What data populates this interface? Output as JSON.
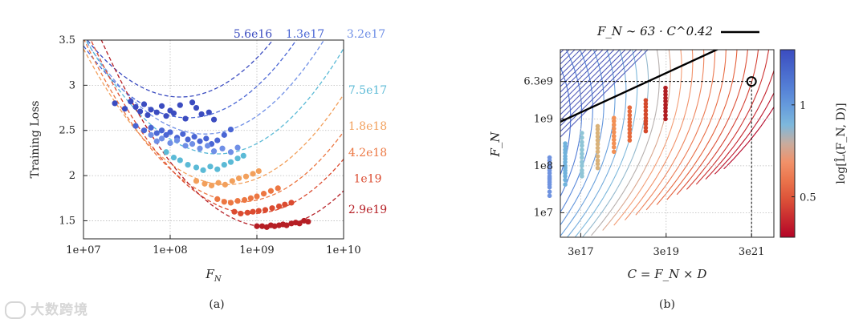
{
  "watermark": "大数跨境",
  "chart_data": [
    {
      "id": "a",
      "caption": "(a)",
      "type": "scatter",
      "xlabel": "F_N",
      "ylabel": "Training Loss",
      "xscale": "log",
      "xlim": [
        10000000.0,
        10000000000.0
      ],
      "ylim": [
        1.3,
        3.5
      ],
      "xticks": [
        "1e+07",
        "1e+08",
        "1e+09",
        "1e+10"
      ],
      "yticks": [
        "1.5",
        "2",
        "2.5",
        "3",
        "3.5"
      ],
      "grid": true,
      "series": [
        {
          "name": "5.6e16",
          "color": "#3b4cc0",
          "label_y": 3.55,
          "x": [
            23000000.0,
            30000000.0,
            35000000.0,
            40000000.0,
            45000000.0,
            50000000.0,
            55000000.0,
            60000000.0,
            70000000.0,
            80000000.0,
            90000000.0,
            100000000.0,
            110000000.0,
            130000000.0,
            150000000.0,
            180000000.0,
            200000000.0,
            230000000.0,
            280000000.0,
            320000000.0
          ],
          "y": [
            2.8,
            2.74,
            2.82,
            2.76,
            2.71,
            2.79,
            2.67,
            2.73,
            2.7,
            2.77,
            2.66,
            2.72,
            2.69,
            2.78,
            2.63,
            2.81,
            2.75,
            2.68,
            2.7,
            2.62
          ]
        },
        {
          "name": "1.3e17",
          "color": "#4a66d4",
          "label_y": 3.55,
          "x": [
            40000000.0,
            50000000.0,
            60000000.0,
            70000000.0,
            80000000.0,
            90000000.0,
            100000000.0,
            120000000.0,
            140000000.0,
            160000000.0,
            190000000.0,
            220000000.0,
            260000000.0,
            300000000.0,
            350000000.0,
            420000000.0,
            500000000.0
          ],
          "y": [
            2.55,
            2.5,
            2.53,
            2.47,
            2.5,
            2.45,
            2.48,
            2.42,
            2.46,
            2.4,
            2.43,
            2.38,
            2.41,
            2.35,
            2.39,
            2.45,
            2.51
          ]
        },
        {
          "name": "3.2e17",
          "color": "#6f8fe6",
          "label_y": 3.55,
          "x": [
            60000000.0,
            70000000.0,
            80000000.0,
            100000000.0,
            120000000.0,
            150000000.0,
            180000000.0,
            220000000.0,
            270000000.0,
            320000000.0,
            400000000.0,
            500000000.0,
            600000000.0
          ],
          "y": [
            2.45,
            2.38,
            2.41,
            2.36,
            2.39,
            2.33,
            2.35,
            2.3,
            2.33,
            2.27,
            2.3,
            2.26,
            2.31
          ]
        },
        {
          "name": "7.5e17",
          "color": "#5bbad6",
          "label_y": 2.95,
          "x": [
            90000000.0,
            110000000.0,
            130000000.0,
            160000000.0,
            200000000.0,
            240000000.0,
            290000000.0,
            350000000.0,
            420000000.0,
            500000000.0,
            600000000.0,
            700000000.0
          ],
          "y": [
            2.26,
            2.2,
            2.17,
            2.12,
            2.09,
            2.06,
            2.1,
            2.07,
            2.12,
            2.15,
            2.19,
            2.22
          ]
        },
        {
          "name": "1.8e18",
          "color": "#f2a05c",
          "label_y": 2.55,
          "x": [
            200000000.0,
            250000000.0,
            300000000.0,
            360000000.0,
            430000000.0,
            520000000.0,
            620000000.0,
            750000000.0,
            900000000.0,
            1050000000.0
          ],
          "y": [
            1.94,
            1.91,
            1.89,
            1.92,
            1.9,
            1.94,
            1.97,
            1.99,
            2.02,
            2.05
          ]
        },
        {
          "name": "4.2e18",
          "color": "#ec7742",
          "label_y": 2.26,
          "x": [
            350000000.0,
            420000000.0,
            500000000.0,
            600000000.0,
            720000000.0,
            850000000.0,
            1000000000.0,
            1200000000.0,
            1450000000.0,
            1750000000.0
          ],
          "y": [
            1.74,
            1.71,
            1.7,
            1.72,
            1.73,
            1.75,
            1.77,
            1.8,
            1.83,
            1.86
          ]
        },
        {
          "name": "1e19",
          "color": "#db4b30",
          "label_y": 1.97,
          "x": [
            550000000.0,
            650000000.0,
            780000000.0,
            900000000.0,
            1050000000.0,
            1250000000.0,
            1500000000.0,
            1800000000.0,
            2100000000.0,
            2500000000.0
          ],
          "y": [
            1.6,
            1.58,
            1.59,
            1.6,
            1.61,
            1.62,
            1.64,
            1.66,
            1.68,
            1.7
          ]
        },
        {
          "name": "2.9e19",
          "color": "#b51e24",
          "label_y": 1.63,
          "x": [
            1000000000.0,
            1150000000.0,
            1300000000.0,
            1450000000.0,
            1600000000.0,
            1800000000.0,
            2000000000.0,
            2200000000.0,
            2500000000.0,
            2800000000.0,
            3100000000.0,
            3500000000.0,
            3900000000.0
          ],
          "y": [
            1.44,
            1.44,
            1.43,
            1.45,
            1.44,
            1.45,
            1.46,
            1.45,
            1.47,
            1.48,
            1.47,
            1.5,
            1.49
          ]
        }
      ],
      "fit_curves": [
        {
          "name": "5.6e16",
          "opt_x": 130000000.0,
          "opt_y": 2.87
        },
        {
          "name": "1.3e17",
          "opt_x": 160000000.0,
          "opt_y": 2.64
        },
        {
          "name": "3.2e17",
          "opt_x": 250000000.0,
          "opt_y": 2.46
        },
        {
          "name": "7.5e17",
          "opt_x": 350000000.0,
          "opt_y": 2.24
        },
        {
          "name": "1.8e18",
          "opt_x": 450000000.0,
          "opt_y": 1.9
        },
        {
          "name": "4.2e18",
          "opt_x": 650000000.0,
          "opt_y": 1.71
        },
        {
          "name": "1e19",
          "opt_x": 900000000.0,
          "opt_y": 1.58
        },
        {
          "name": "2.9e19",
          "opt_x": 1400000000.0,
          "opt_y": 1.43
        }
      ]
    },
    {
      "id": "b",
      "caption": "(b)",
      "type": "scatter",
      "xlabel": "C = F_N × D",
      "ylabel": "F_N",
      "xscale": "log",
      "yscale": "log",
      "xlim": [
        1e+17,
        1e+22
      ],
      "ylim": [
        3000000.0,
        30000000000.0
      ],
      "xticks": [
        "3e17",
        "3e19",
        "3e21"
      ],
      "yticks": [
        "1e7",
        "1e8",
        "1e9",
        "6.3e9"
      ],
      "grid": true,
      "legend": {
        "label": "F_N ∼ 63 · C^0.42",
        "position": "top"
      },
      "fit_line": {
        "coef": 63,
        "exponent": 0.42
      },
      "marker": {
        "C": 3e+21,
        "F_N": 6300000000.0
      },
      "colorbar": {
        "label": "log[L̂(F_N, D)]",
        "ticks": [
          "1",
          "0.5"
        ],
        "tick_values": [
          1.0,
          0.5
        ],
        "range": [
          0.28,
          1.3
        ]
      },
      "series": [
        {
          "C": 5.6e+16,
          "color": "#6f93e0",
          "F_N": [
            23000000.0,
            28000000.0,
            35000000.0,
            40000000.0,
            45000000.0,
            50000000.0,
            55000000.0,
            60000000.0,
            70000000.0,
            80000000.0,
            90000000.0,
            100000000.0,
            110000000.0,
            130000000.0,
            150000000.0
          ]
        },
        {
          "C": 1.3e+17,
          "color": "#6fb2dc",
          "F_N": [
            40000000.0,
            50000000.0,
            60000000.0,
            70000000.0,
            80000000.0,
            90000000.0,
            100000000.0,
            120000000.0,
            140000000.0,
            160000000.0,
            190000000.0,
            220000000.0,
            260000000.0,
            300000000.0
          ]
        },
        {
          "C": 3.2e+17,
          "color": "#8fc5d6",
          "F_N": [
            60000000.0,
            70000000.0,
            80000000.0,
            100000000.0,
            120000000.0,
            150000000.0,
            180000000.0,
            220000000.0,
            270000000.0,
            320000000.0,
            400000000.0,
            500000000.0
          ]
        },
        {
          "C": 7.5e+17,
          "color": "#d9b27a",
          "F_N": [
            90000000.0,
            110000000.0,
            130000000.0,
            160000000.0,
            200000000.0,
            240000000.0,
            290000000.0,
            350000000.0,
            420000000.0,
            500000000.0,
            600000000.0,
            700000000.0
          ]
        },
        {
          "C": 1.8e+18,
          "color": "#f29055",
          "F_N": [
            200000000.0,
            250000000.0,
            300000000.0,
            360000000.0,
            430000000.0,
            520000000.0,
            620000000.0,
            750000000.0,
            900000000.0,
            1050000000.0
          ]
        },
        {
          "C": 4.2e+18,
          "color": "#e66a3c",
          "F_N": [
            350000000.0,
            420000000.0,
            500000000.0,
            600000000.0,
            720000000.0,
            850000000.0,
            1000000000.0,
            1200000000.0,
            1450000000.0,
            1750000000.0
          ]
        },
        {
          "C": 1e+19,
          "color": "#d44a2c",
          "F_N": [
            550000000.0,
            650000000.0,
            780000000.0,
            900000000.0,
            1050000000.0,
            1250000000.0,
            1500000000.0,
            1800000000.0,
            2100000000.0,
            2500000000.0
          ]
        },
        {
          "C": 2.9e+19,
          "color": "#b01e22",
          "F_N": [
            1000000000.0,
            1200000000.0,
            1450000000.0,
            1700000000.0,
            2000000000.0,
            2400000000.0,
            2800000000.0,
            3300000000.0,
            3900000000.0,
            4600000000.0
          ]
        }
      ]
    }
  ]
}
